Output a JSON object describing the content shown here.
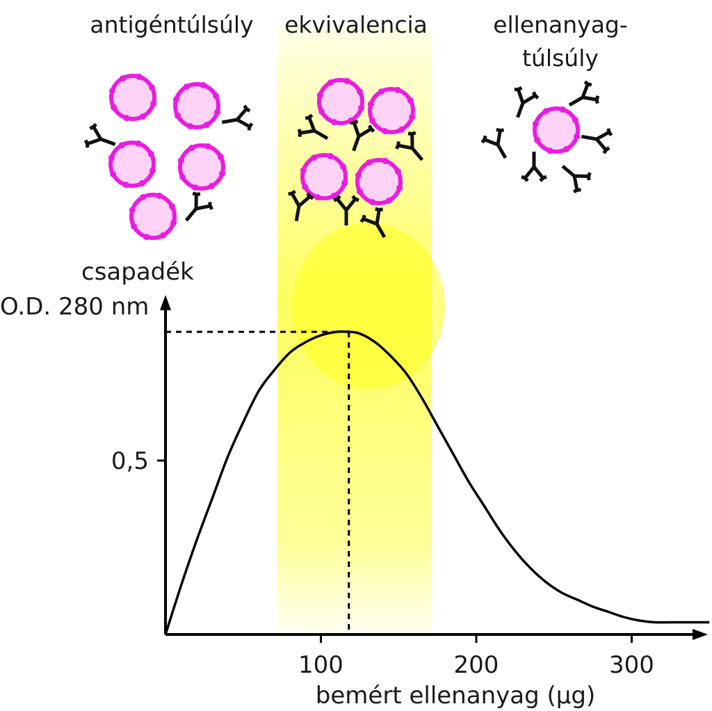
{
  "zone_labels": {
    "left": "antigéntúlsúly",
    "middle": "ekvivalencia",
    "right_line1": "ellenanyag-",
    "right_line2": "túlsúly"
  },
  "colors": {
    "antigen_fill": "#ffd3f6",
    "antigen_stroke": "#ea1ce1",
    "antibody": "#111111",
    "equivalence_band": "#ffff4d",
    "curve": "#000000"
  },
  "chart_data": {
    "type": "line",
    "title": "",
    "xlabel": "bemért ellenanyag (μg)",
    "ylabel_line1": "csapadék",
    "ylabel_line2": "O.D. 280 nm",
    "xlim": [
      0,
      350
    ],
    "ylim": [
      0,
      1.1
    ],
    "x_ticks": [
      100,
      200,
      300
    ],
    "x_tick_labels": [
      "100",
      "200",
      "300"
    ],
    "y_ticks": [
      0.5
    ],
    "y_tick_labels": [
      "0,5"
    ],
    "grid": false,
    "equivalence_range": [
      72,
      171
    ],
    "peak": {
      "x": 118,
      "y": 0.87
    },
    "series": [
      {
        "x": [
          0,
          10,
          20,
          30,
          40,
          50,
          60,
          70,
          80,
          90,
          100,
          110,
          118,
          125,
          135,
          145,
          155,
          165,
          175,
          185,
          195,
          205,
          215,
          225,
          235,
          245,
          255,
          265,
          275,
          285,
          295,
          305,
          315,
          325,
          335,
          350
        ],
        "y": [
          0,
          0.14,
          0.27,
          0.39,
          0.51,
          0.61,
          0.7,
          0.76,
          0.81,
          0.84,
          0.86,
          0.87,
          0.87,
          0.865,
          0.84,
          0.8,
          0.75,
          0.68,
          0.6,
          0.52,
          0.44,
          0.37,
          0.3,
          0.24,
          0.19,
          0.15,
          0.12,
          0.1,
          0.08,
          0.065,
          0.05,
          0.04,
          0.035,
          0.035,
          0.035,
          0.035
        ]
      }
    ]
  }
}
